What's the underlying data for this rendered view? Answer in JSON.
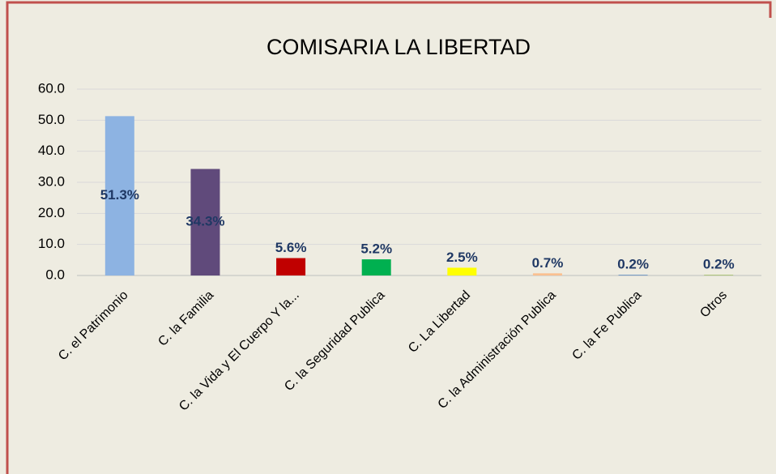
{
  "chart_data": {
    "type": "bar",
    "title": "COMISARIA LA LIBERTAD",
    "categories": [
      "C. el Patrimonio",
      "C. la Familia",
      "C. la Vida y El Cuerpo Y la...",
      "C. la Seguridad Publica",
      "C. La Libertad",
      "C. la Administración Publica",
      "C. la Fe Publica",
      "Otros"
    ],
    "values": [
      51.3,
      34.3,
      5.6,
      5.2,
      2.5,
      0.7,
      0.2,
      0.2
    ],
    "value_labels": [
      "51.3%",
      "34.3%",
      "5.6%",
      "5.2%",
      "2.5%",
      "0.7%",
      "0.2%",
      "0.2%"
    ],
    "colors": [
      "#8db3e2",
      "#604a7b",
      "#c00000",
      "#00b050",
      "#ffff00",
      "#fac090",
      "#4f81bd",
      "#9bbb59"
    ],
    "ylim": [
      0,
      60
    ],
    "yticks": [
      {
        "value": 0,
        "label": "0.0"
      },
      {
        "value": 10,
        "label": "10.0"
      },
      {
        "value": 20,
        "label": "20.0"
      },
      {
        "value": 30,
        "label": "30.0"
      },
      {
        "value": 40,
        "label": "40.0"
      },
      {
        "value": 50,
        "label": "50.0"
      },
      {
        "value": 60,
        "label": "60.0"
      }
    ],
    "grid": true
  }
}
